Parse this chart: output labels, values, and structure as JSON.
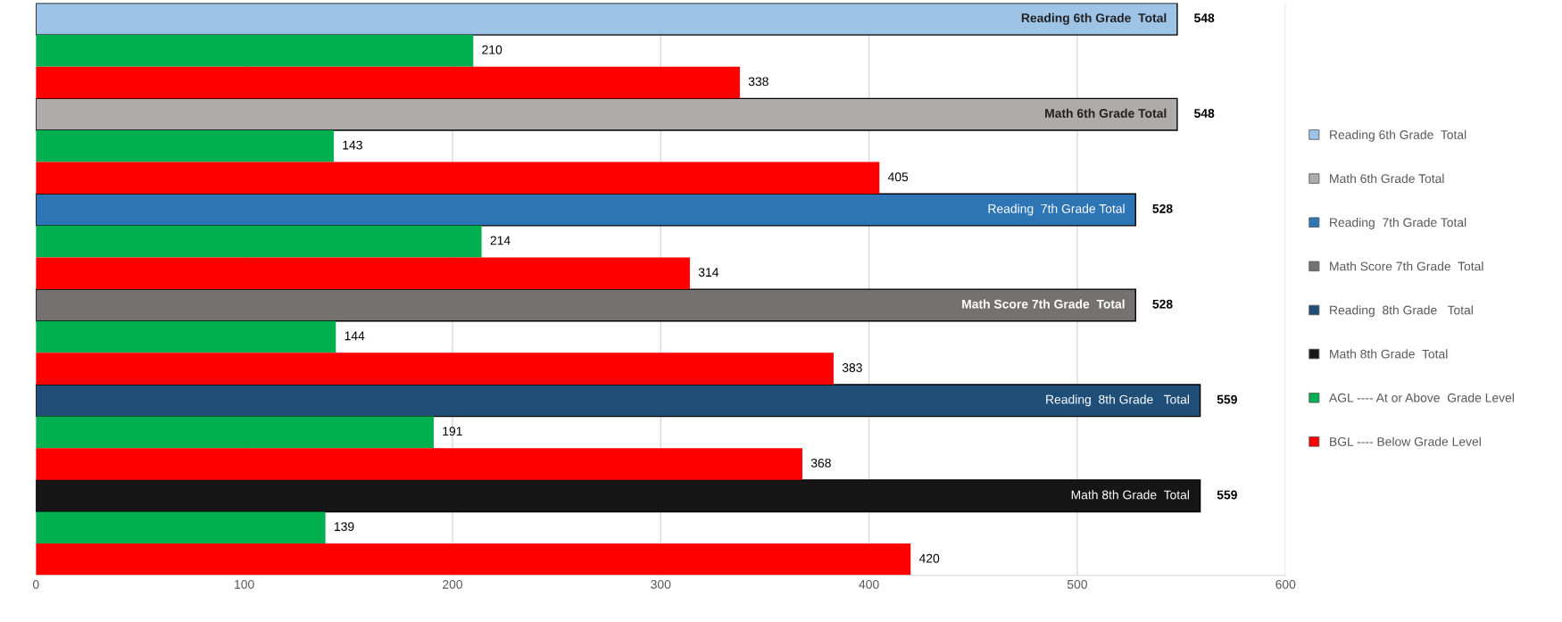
{
  "chart_data": {
    "type": "bar",
    "orientation": "horizontal",
    "categories": [
      null,
      null,
      null,
      null,
      null,
      null,
      null,
      null,
      null,
      null,
      null,
      null,
      null,
      null,
      null,
      null,
      null,
      null
    ],
    "series": [
      {
        "name": "Reading 6th Grade  Total",
        "color": "#9dc3e6",
        "values": [
          548,
          null,
          null,
          null,
          null,
          null,
          null,
          null,
          null,
          null,
          null,
          null,
          null,
          null,
          null,
          null,
          null,
          null
        ],
        "value_labels": [
          "548",
          null,
          null,
          null,
          null,
          null,
          null,
          null,
          null,
          null,
          null,
          null,
          null,
          null,
          null,
          null,
          null,
          null
        ]
      },
      {
        "name": "Math 6th Grade Total",
        "color": "#afabab",
        "values": [
          null,
          null,
          null,
          548,
          null,
          null,
          null,
          null,
          null,
          null,
          null,
          null,
          null,
          null,
          null,
          null,
          null,
          null
        ],
        "value_labels": [
          null,
          null,
          null,
          "548",
          null,
          null,
          null,
          null,
          null,
          null,
          null,
          null,
          null,
          null,
          null,
          null,
          null,
          null
        ]
      },
      {
        "name": "Reading  7th Grade Total",
        "color": "#2e75b6",
        "values": [
          null,
          null,
          null,
          null,
          null,
          null,
          528,
          null,
          null,
          null,
          null,
          null,
          null,
          null,
          null,
          null,
          null,
          null
        ],
        "value_labels": [
          null,
          null,
          null,
          null,
          null,
          null,
          "528",
          null,
          null,
          null,
          null,
          null,
          null,
          null,
          null,
          null,
          null,
          null
        ]
      },
      {
        "name": "Math Score 7th Grade  Total",
        "color": "#767171",
        "values": [
          null,
          null,
          null,
          null,
          null,
          null,
          null,
          null,
          null,
          528,
          null,
          null,
          null,
          null,
          null,
          null,
          null,
          null
        ],
        "value_labels": [
          null,
          null,
          null,
          null,
          null,
          null,
          null,
          null,
          null,
          "528",
          null,
          null,
          null,
          null,
          null,
          null,
          null,
          null
        ]
      },
      {
        "name": "Reading  8th Grade   Total",
        "color": "#1f4e79",
        "values": [
          null,
          null,
          null,
          null,
          null,
          null,
          null,
          null,
          null,
          null,
          null,
          null,
          559,
          null,
          null,
          null,
          null,
          null
        ],
        "value_labels": [
          null,
          null,
          null,
          null,
          null,
          null,
          null,
          null,
          null,
          null,
          null,
          null,
          "559",
          null,
          null,
          null,
          null,
          null
        ]
      },
      {
        "name": "Math 8th Grade  Total",
        "color": "#161616",
        "values": [
          null,
          null,
          null,
          null,
          null,
          null,
          null,
          null,
          null,
          null,
          null,
          null,
          null,
          null,
          null,
          559,
          null,
          null
        ],
        "value_labels": [
          null,
          null,
          null,
          null,
          null,
          null,
          null,
          null,
          null,
          null,
          null,
          null,
          null,
          null,
          null,
          "559",
          null,
          null
        ]
      },
      {
        "name": "AGL ---- At or Above  Grade Level",
        "color": "#00b050",
        "values": [
          null,
          210,
          null,
          null,
          143,
          null,
          null,
          214,
          null,
          null,
          144,
          null,
          null,
          191,
          null,
          null,
          139,
          null
        ],
        "value_labels": [
          null,
          "210",
          null,
          null,
          "143",
          null,
          null,
          "214",
          null,
          null,
          "144",
          null,
          null,
          "191",
          null,
          null,
          "139",
          null
        ]
      },
      {
        "name": "BGL ---- Below Grade Level",
        "color": "#ff0000",
        "values": [
          null,
          null,
          338,
          null,
          null,
          405,
          null,
          null,
          314,
          null,
          null,
          383,
          null,
          null,
          368,
          null,
          null,
          420
        ],
        "value_labels": [
          null,
          null,
          "338",
          null,
          null,
          "405",
          null,
          null,
          "314",
          null,
          null,
          "383",
          null,
          null,
          "368",
          null,
          null,
          "420"
        ]
      }
    ],
    "annotations": [
      "Reading 6th Grade  Total",
      "Math 6th Grade Total",
      "Reading  7th Grade Total",
      "Math Score 7th Grade  Total",
      "Reading  8th Grade   Total",
      "Math 8th Grade  Total"
    ],
    "xlim": [
      0,
      600
    ],
    "xticks": [
      0,
      100,
      200,
      300,
      400,
      500,
      600
    ],
    "grid": "x",
    "legend": "right",
    "tick_labels": "x"
  }
}
